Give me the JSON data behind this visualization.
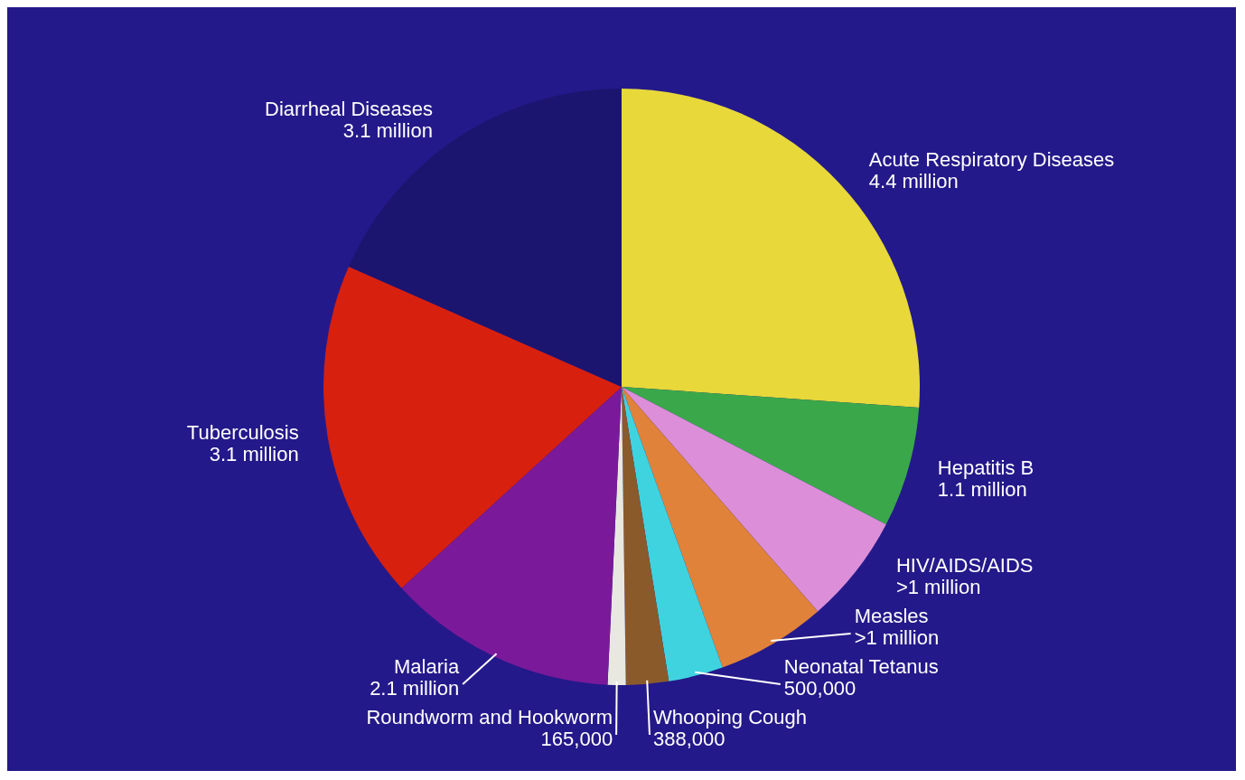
{
  "chart_data": {
    "type": "pie",
    "categories": [
      "Acute Respiratory Diseases",
      "Hepatitis B",
      "HIV/AIDS/AIDS",
      "Measles",
      "Neonatal Tetanus",
      "Whooping Cough",
      "Roundworm and Hookworm",
      "Malaria",
      "Tuberculosis",
      "Diarrheal Diseases"
    ],
    "values": [
      4400000,
      1100000,
      1000000,
      1000000,
      500000,
      388000,
      165000,
      2100000,
      3100000,
      3100000
    ],
    "value_labels": [
      "4.4 million",
      "1.1 million",
      ">1 million",
      ">1 million",
      "500,000",
      "388,000",
      "165,000",
      "2.1 million",
      "3.1 million",
      "3.1 million"
    ],
    "colors": [
      "#e8d83a",
      "#3aa84a",
      "#dc8fd8",
      "#e0823a",
      "#3fd3e0",
      "#8b5a2b",
      "#e8e8e0",
      "#7a1a9a",
      "#d8200f",
      "#1c1570"
    ],
    "legend": false
  }
}
